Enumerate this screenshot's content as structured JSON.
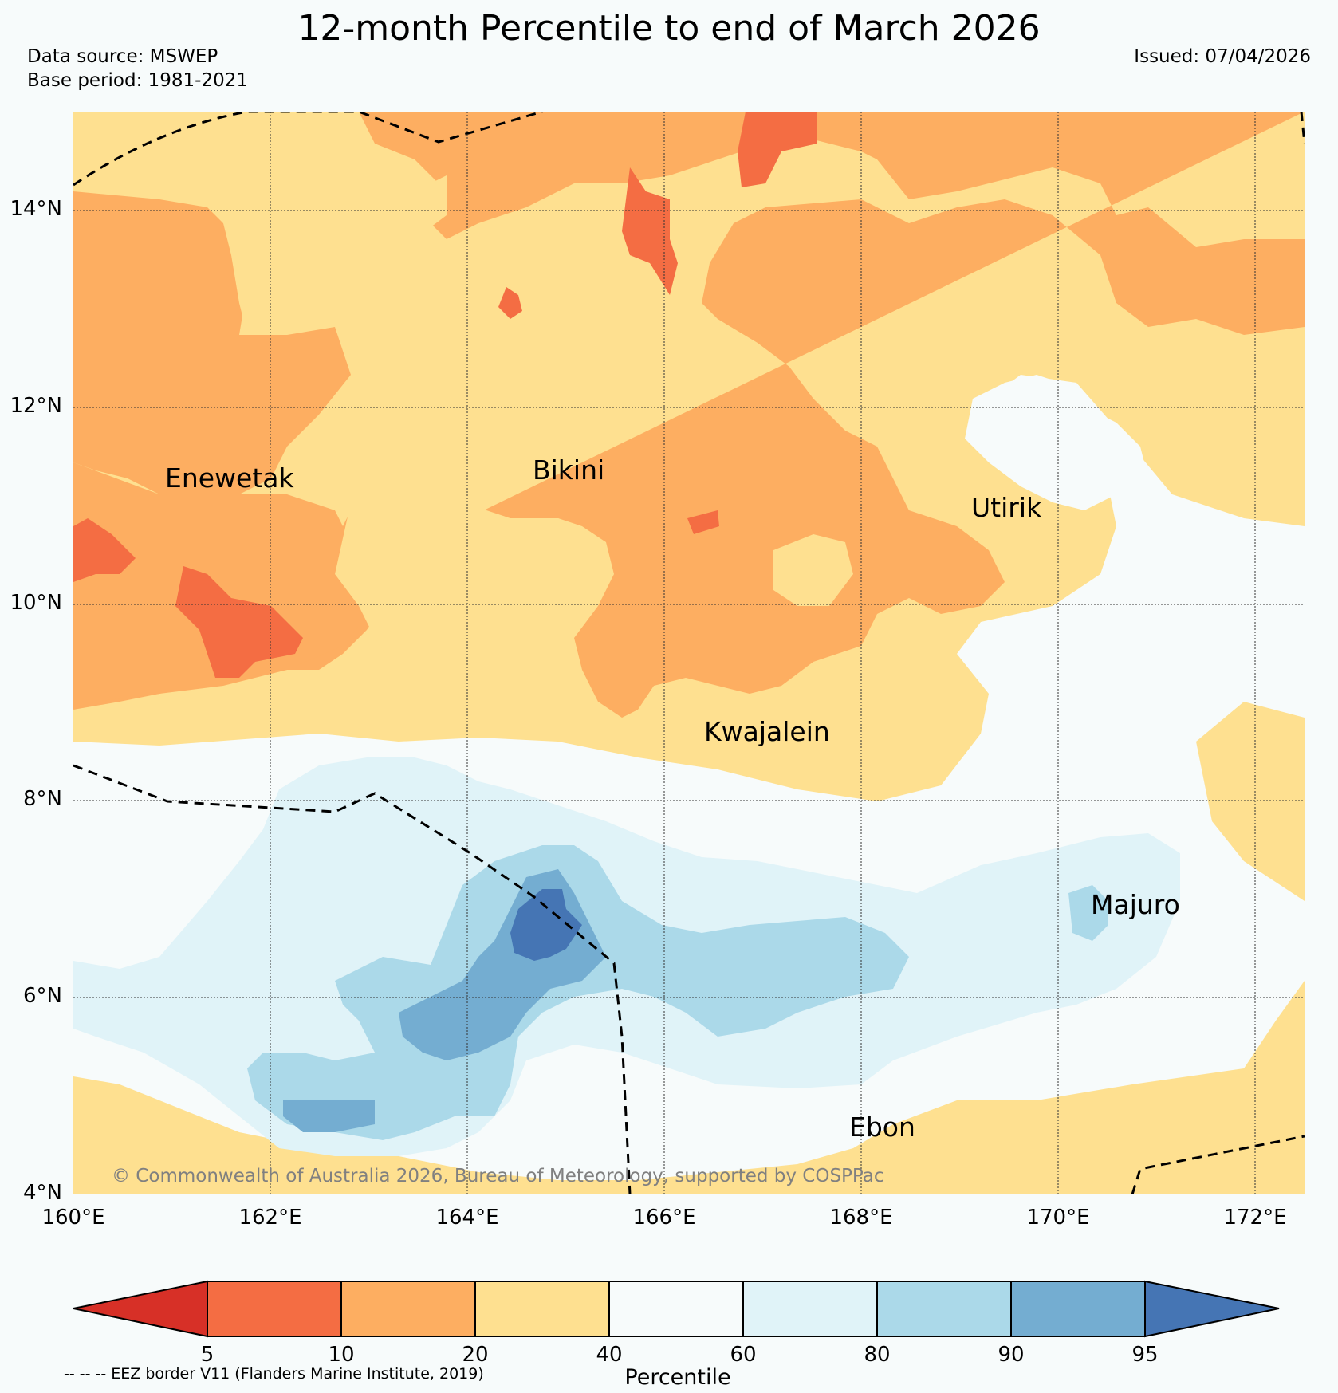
{
  "title": "12-month Percentile to end of March 2026",
  "data_source": "Data source: MSWEP",
  "base_period": "Base period: 1981-2021",
  "issued": "Issued: 07/04/2026",
  "lat_labels": [
    "14°N",
    "12°N",
    "10°N",
    "8°N",
    "6°N",
    "4°N"
  ],
  "lon_labels": [
    "160°E",
    "162°E",
    "164°E",
    "166°E",
    "168°E",
    "170°E",
    "172°E"
  ],
  "places": [
    "Enewetak",
    "Bikini",
    "Utirik",
    "Kwajalein",
    "Majuro",
    "Ebon"
  ],
  "copyright": "© Commonwealth of Australia 2026, Bureau of Meteorology, supported by COSPPac",
  "colorbar": {
    "ticks": [
      "5",
      "10",
      "20",
      "40",
      "60",
      "80",
      "90",
      "95"
    ],
    "label": "Percentile",
    "colors": [
      "#d73027",
      "#f46d43",
      "#fdae61",
      "#fee090",
      "#f7fbfb",
      "#e0f3f8",
      "#abd9e9",
      "#74add1",
      "#4575b4"
    ]
  },
  "eez_note": "-- -- -- EEZ border V11 (Flanders Marine Institute, 2019)"
}
